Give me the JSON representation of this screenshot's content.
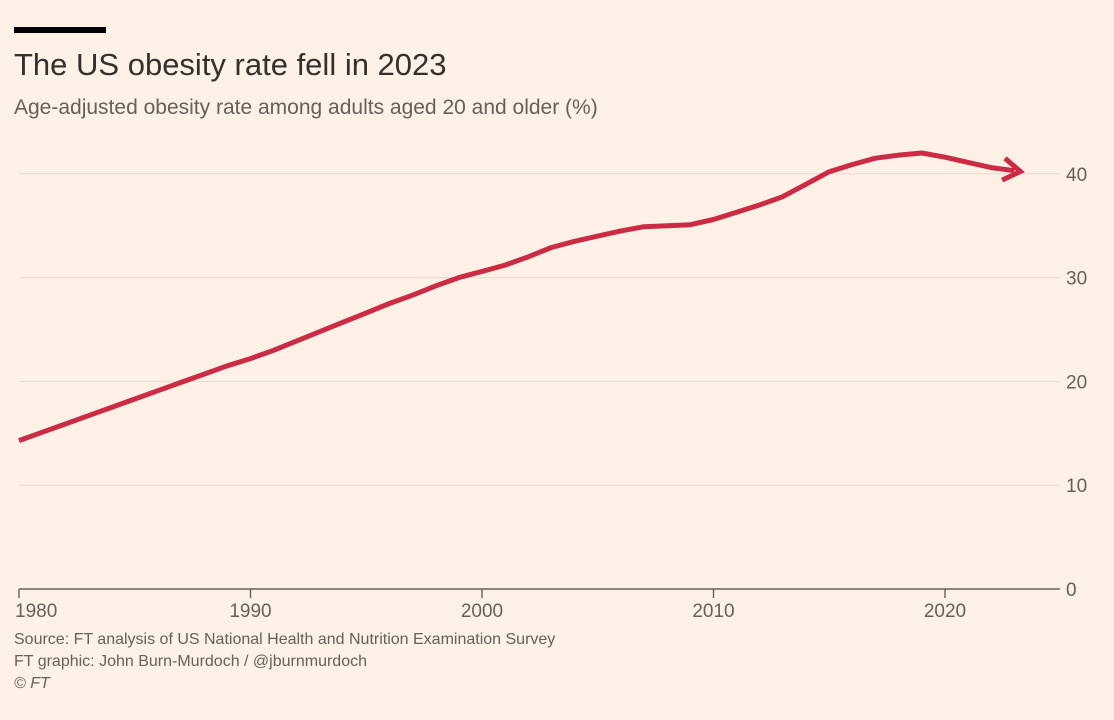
{
  "header": {
    "title": "The US obesity rate fell in 2023",
    "subtitle": "Age-adjusted obesity rate among adults aged 20 and older (%)"
  },
  "footer": {
    "source": "Source: FT analysis of US National Health and Nutrition Examination Survey",
    "credit": "FT graphic: John Burn-Murdoch / @jburnmurdoch",
    "copyright": "© FT"
  },
  "chart_data": {
    "type": "line",
    "title": "The US obesity rate fell in 2023",
    "subtitle": "Age-adjusted obesity rate among adults aged 20 and older (%)",
    "xlabel": "",
    "ylabel": "",
    "xlim": [
      1980,
      2025
    ],
    "ylim": [
      0,
      45
    ],
    "x_ticks": [
      1980,
      1990,
      2000,
      2010,
      2020
    ],
    "y_ticks": [
      0,
      10,
      20,
      30,
      40
    ],
    "y_axis_side": "right",
    "grid": "horizontal",
    "legend": "none",
    "series": [
      {
        "color": "#cc2b45",
        "end_marker": "arrow",
        "x": [
          1980,
          1981,
          1982,
          1983,
          1984,
          1985,
          1986,
          1987,
          1988,
          1989,
          1990,
          1991,
          1992,
          1993,
          1994,
          1995,
          1996,
          1997,
          1998,
          1999,
          2000,
          2001,
          2002,
          2003,
          2004,
          2005,
          2006,
          2007,
          2008,
          2009,
          2010,
          2011,
          2012,
          2013,
          2014,
          2015,
          2016,
          2017,
          2018,
          2019,
          2020,
          2021,
          2022,
          2023
        ],
        "values": [
          14.3,
          15.1,
          15.9,
          16.7,
          17.5,
          18.3,
          19.1,
          19.9,
          20.7,
          21.5,
          22.2,
          23.0,
          23.9,
          24.8,
          25.7,
          26.6,
          27.5,
          28.3,
          29.2,
          30.0,
          30.6,
          31.2,
          32.0,
          32.9,
          33.5,
          34.0,
          34.5,
          34.9,
          35.0,
          35.1,
          35.6,
          36.3,
          37.0,
          37.8,
          39.0,
          40.2,
          40.9,
          41.5,
          41.8,
          42.0,
          41.6,
          41.1,
          40.6,
          40.3
        ]
      }
    ]
  }
}
